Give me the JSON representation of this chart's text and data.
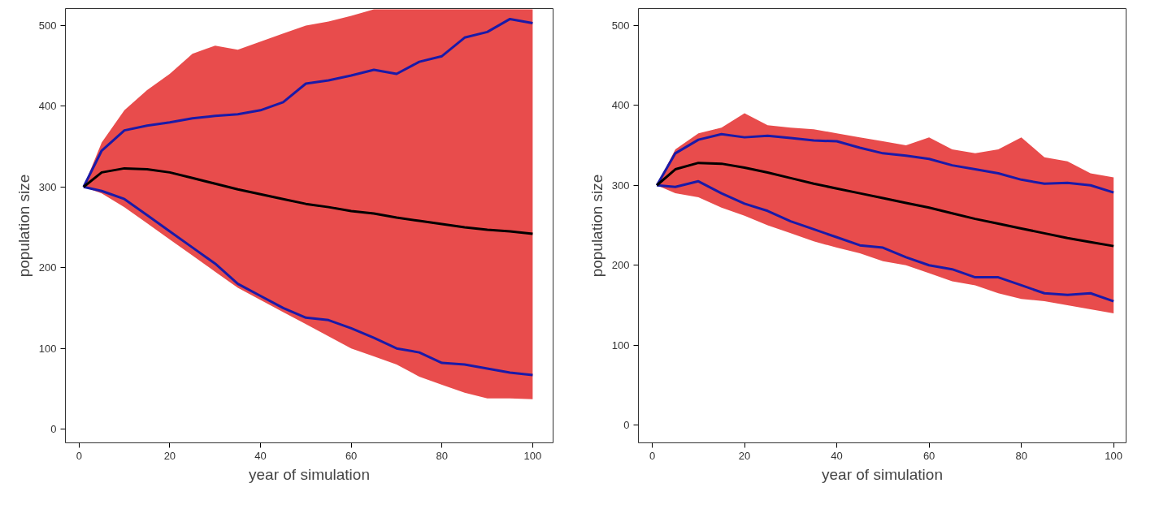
{
  "chart_data": [
    {
      "type": "line",
      "xlabel": "year of simulation",
      "ylabel": "population size",
      "xlim": [
        -3,
        104.5
      ],
      "ylim": [
        -17,
        521
      ],
      "xticks": [
        0,
        20,
        40,
        60,
        80,
        100
      ],
      "yticks": [
        0,
        100,
        200,
        300,
        400,
        500
      ],
      "grid": false,
      "x": [
        1,
        5,
        10,
        15,
        20,
        25,
        30,
        35,
        40,
        45,
        50,
        55,
        60,
        65,
        70,
        75,
        80,
        85,
        90,
        95,
        100
      ],
      "series": [
        {
          "color": "#1a1aa8",
          "values": [
            300,
            345,
            370,
            376,
            380,
            385,
            388,
            390,
            395,
            405,
            428,
            432,
            438,
            445,
            440,
            455,
            462,
            485,
            492,
            508,
            503
          ]
        },
        {
          "color": "#1a1aa8",
          "values": [
            300,
            295,
            285,
            265,
            245,
            225,
            205,
            180,
            165,
            150,
            138,
            135,
            125,
            113,
            100,
            95,
            82,
            80,
            75,
            70,
            67
          ]
        },
        {
          "color": "#000000",
          "values": [
            300,
            318,
            323,
            322,
            318,
            311,
            304,
            297,
            291,
            285,
            279,
            275,
            270,
            267,
            262,
            258,
            254,
            250,
            247,
            245,
            242
          ],
          "lower": [
            300,
            292,
            275,
            255,
            235,
            215,
            195,
            175,
            160,
            145,
            130,
            115,
            100,
            90,
            80,
            65,
            55,
            45,
            38,
            38,
            37
          ],
          "upper": [
            300,
            355,
            395,
            420,
            440,
            465,
            475,
            470,
            480,
            490,
            500,
            505,
            512,
            520,
            520,
            520,
            520,
            520,
            520,
            520,
            520
          ]
        }
      ]
    },
    {
      "type": "line",
      "xlabel": "year of simulation",
      "ylabel": "population size",
      "xlim": [
        -3,
        102.7
      ],
      "ylim": [
        -22,
        521
      ],
      "xticks": [
        0,
        20,
        40,
        60,
        80,
        100
      ],
      "yticks": [
        0,
        100,
        200,
        300,
        400,
        500
      ],
      "grid": false,
      "x": [
        1,
        5,
        10,
        15,
        20,
        25,
        30,
        35,
        40,
        45,
        50,
        55,
        60,
        65,
        70,
        75,
        80,
        85,
        90,
        95,
        100
      ],
      "series": [
        {
          "color": "#1a1aa8",
          "values": [
            300,
            340,
            357,
            364,
            360,
            362,
            359,
            356,
            355,
            347,
            340,
            337,
            333,
            325,
            320,
            315,
            307,
            302,
            303,
            300,
            291
          ]
        },
        {
          "color": "#1a1aa8",
          "values": [
            300,
            298,
            305,
            290,
            277,
            268,
            255,
            245,
            235,
            225,
            222,
            210,
            200,
            195,
            185,
            185,
            175,
            165,
            163,
            165,
            155
          ]
        },
        {
          "color": "#000000",
          "values": [
            300,
            320,
            328,
            327,
            322,
            316,
            309,
            302,
            296,
            290,
            284,
            278,
            272,
            265,
            258,
            252,
            246,
            240,
            234,
            229,
            224
          ],
          "lower": [
            300,
            290,
            285,
            272,
            262,
            250,
            240,
            230,
            222,
            215,
            205,
            200,
            190,
            180,
            175,
            165,
            158,
            155,
            150,
            145,
            140
          ],
          "upper": [
            300,
            345,
            365,
            372,
            390,
            375,
            372,
            370,
            365,
            360,
            355,
            350,
            360,
            345,
            340,
            345,
            360,
            335,
            330,
            315,
            310
          ]
        }
      ]
    }
  ]
}
